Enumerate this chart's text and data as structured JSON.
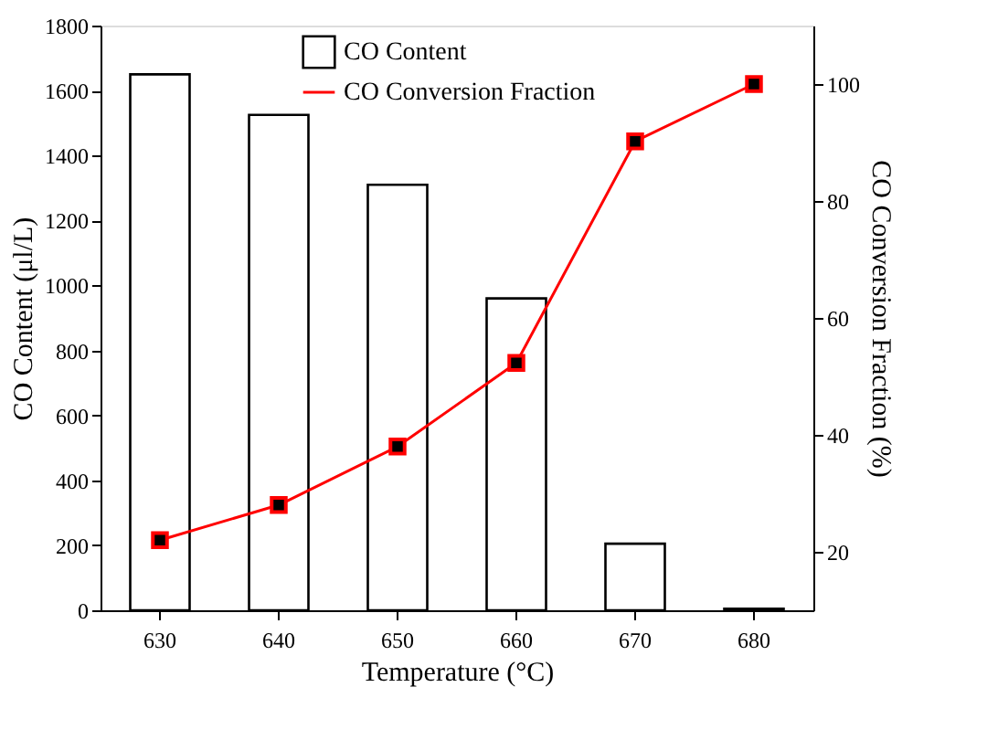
{
  "chart_data": {
    "type": "bar",
    "xlabel": "Temperature (°C)",
    "ylabel": "CO Content (μl/L)",
    "y2label": "CO Conversion Fraction (%)",
    "categories": [
      "630",
      "640",
      "650",
      "660",
      "670",
      "680"
    ],
    "series": [
      {
        "name": "CO Content",
        "color": "#ffffff",
        "values": [
          1650,
          1525,
          1310,
          960,
          205,
          5
        ]
      },
      {
        "name": "CO Conversion Fraction",
        "type": "line",
        "color": "#ff0000",
        "axis": "y2",
        "marker": "square",
        "values": [
          22,
          28,
          38,
          52.3,
          90.2,
          100
        ]
      }
    ],
    "ylim": [
      0,
      1800
    ],
    "yticks": [
      0,
      200,
      400,
      600,
      800,
      1000,
      1200,
      1400,
      1600,
      1800
    ],
    "y2lim": [
      10,
      110
    ],
    "y2ticks": [
      20,
      40,
      60,
      80,
      100
    ],
    "grid": false,
    "legend": "top"
  }
}
